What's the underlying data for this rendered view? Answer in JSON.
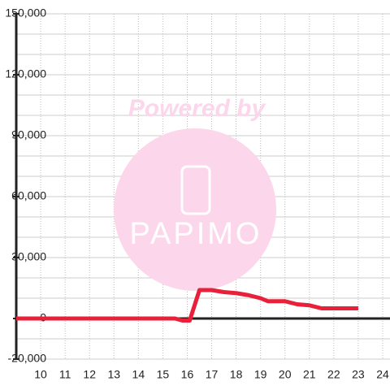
{
  "chart_data": {
    "type": "line",
    "watermark": [
      "Powered by",
      "PAPIMO"
    ],
    "x": [
      9,
      15.5,
      15.8,
      16.1,
      16.5,
      17,
      17.5,
      18,
      18.5,
      19,
      19.3,
      20,
      20.5,
      21,
      21.5,
      22,
      23
    ],
    "series": [
      {
        "name": "series",
        "color": "#e8203a",
        "values": [
          0,
          0,
          -1000,
          -1000,
          14000,
          14000,
          13000,
          12500,
          11500,
          10000,
          8500,
          8500,
          7000,
          6500,
          5000,
          5000,
          5000
        ]
      }
    ],
    "xlim": [
      9,
      24.3
    ],
    "xticks": [
      10,
      11,
      12,
      13,
      14,
      15,
      16,
      17,
      18,
      19,
      20,
      21,
      22,
      23,
      24
    ],
    "ylim": [
      -20000,
      150000
    ],
    "yticks": [
      {
        "value": 150000,
        "label": "150,000"
      },
      {
        "value": 120000,
        "label": "120,000"
      },
      {
        "value": 90000,
        "label": "90,000"
      },
      {
        "value": 60000,
        "label": "60,000"
      },
      {
        "value": 30000,
        "label": "30,000"
      },
      0,
      {
        "value": -20000,
        "label": "-20,000"
      }
    ],
    "yminorticks": [
      -10000,
      10000,
      20000,
      40000,
      50000,
      70000,
      80000,
      100000,
      110000,
      130000,
      140000
    ],
    "grid": true
  }
}
